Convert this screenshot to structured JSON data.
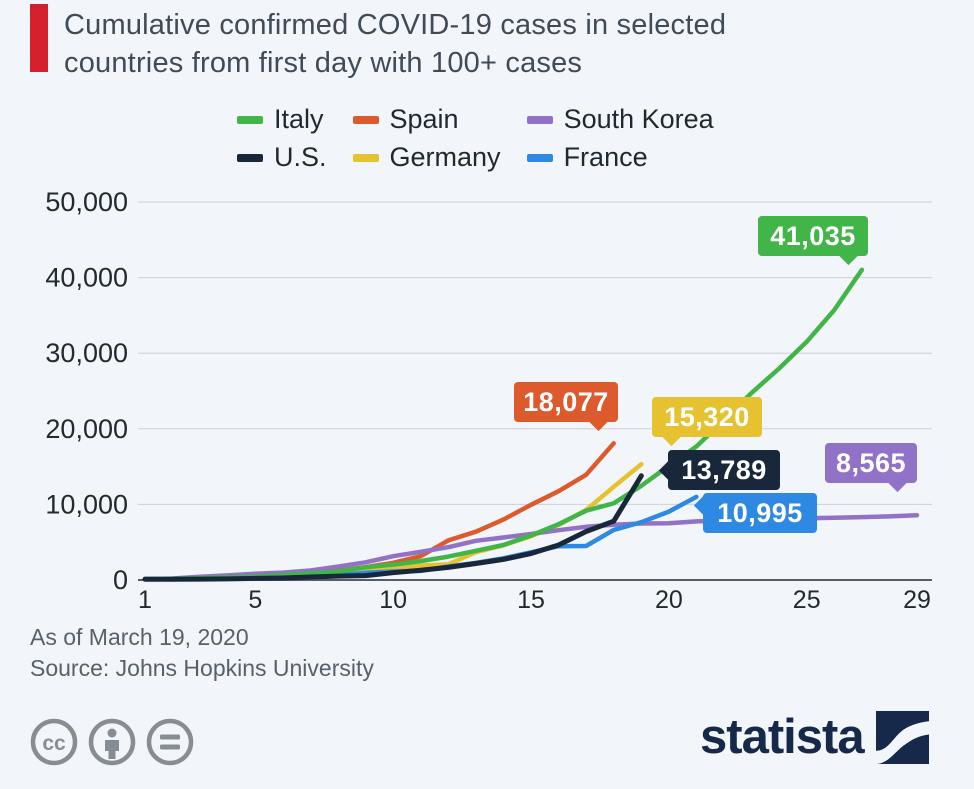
{
  "page": {
    "background": "#f2f5f9",
    "accent_color": "#d41f2c"
  },
  "header": {
    "title_line1": "Cumulative confirmed COVID-19 cases in selected",
    "title_line2": "countries from first day with 100+ cases"
  },
  "legend": {
    "items": [
      {
        "label": "Italy",
        "color": "#42b549"
      },
      {
        "label": "Spain",
        "color": "#dd5a2c"
      },
      {
        "label": "South Korea",
        "color": "#9272c6"
      },
      {
        "label": "U.S.",
        "color": "#18273a"
      },
      {
        "label": "Germany",
        "color": "#e6c231"
      },
      {
        "label": "France",
        "color": "#2e89e2"
      }
    ]
  },
  "chart_data": {
    "type": "line",
    "title": "Cumulative confirmed COVID-19 cases in selected countries from first day with 100+ cases",
    "xlabel": "",
    "ylabel": "",
    "xlim": [
      1,
      29
    ],
    "ylim": [
      0,
      50000
    ],
    "x_ticks": [
      1,
      5,
      10,
      15,
      20,
      25,
      29
    ],
    "y_ticks": [
      0,
      10000,
      20000,
      30000,
      40000,
      50000
    ],
    "grid": true,
    "legend_position": "top",
    "axis_color": "#565d66",
    "grid_color": "#ccd1d8",
    "tick_color": "#222a31",
    "series": [
      {
        "name": "Spain",
        "color": "#dd5a2c",
        "end_label": "18,077",
        "pointer": "br",
        "values": [
          120,
          165,
          228,
          282,
          401,
          525,
          674,
          1231,
          1695,
          2277,
          3146,
          5232,
          6391,
          7988,
          9942,
          11748,
          13910,
          18077
        ]
      },
      {
        "name": "Germany",
        "color": "#e6c231",
        "end_label": "15,320",
        "pointer": "bl",
        "values": [
          130,
          159,
          196,
          262,
          482,
          670,
          799,
          1040,
          1176,
          1457,
          1908,
          2078,
          3675,
          4585,
          5795,
          7272,
          9257,
          12327,
          15320
        ]
      },
      {
        "name": "South Korea",
        "color": "#9272c6",
        "end_label": "8,565",
        "pointer": "br",
        "values": [
          104,
          204,
          433,
          602,
          833,
          977,
          1261,
          1766,
          2337,
          3150,
          3736,
          4335,
          5186,
          5621,
          6088,
          6593,
          7041,
          7314,
          7478,
          7513,
          7755,
          7869,
          7979,
          8086,
          8162,
          8236,
          8320,
          8413,
          8565
        ]
      },
      {
        "name": "France",
        "color": "#2e89e2",
        "end_label": "10,995",
        "pointer": "tl",
        "values": [
          100,
          100,
          130,
          191,
          204,
          285,
          377,
          653,
          949,
          1126,
          1209,
          1784,
          2281,
          2876,
          3661,
          4469,
          4499,
          6633,
          7652,
          9043,
          10995
        ]
      },
      {
        "name": "Italy",
        "color": "#42b549",
        "end_label": "41,035",
        "pointer": "br",
        "values": [
          132,
          155,
          229,
          322,
          453,
          655,
          888,
          1128,
          1694,
          2036,
          2502,
          3089,
          3858,
          4636,
          5883,
          7375,
          9172,
          10149,
          12462,
          15113,
          17660,
          21157,
          24747,
          27980,
          31506,
          35713,
          41035
        ]
      },
      {
        "name": "U.S.",
        "color": "#18273a",
        "end_label": "13,789",
        "pointer": "ml",
        "values": [
          100,
          102,
          118,
          149,
          217,
          262,
          402,
          518,
          583,
          959,
          1281,
          1663,
          2179,
          2727,
          3499,
          4632,
          6421,
          7783,
          13789
        ]
      }
    ]
  },
  "footer": {
    "as_of": "As of March 19, 2020",
    "source": "Source: Johns Hopkins University"
  },
  "branding": {
    "logo_text": "statista",
    "license_icons": [
      "cc-icon",
      "attribution-person-icon",
      "no-derivatives-equals-icon"
    ],
    "logo_color": "#16294a",
    "icon_color": "#878d94"
  }
}
